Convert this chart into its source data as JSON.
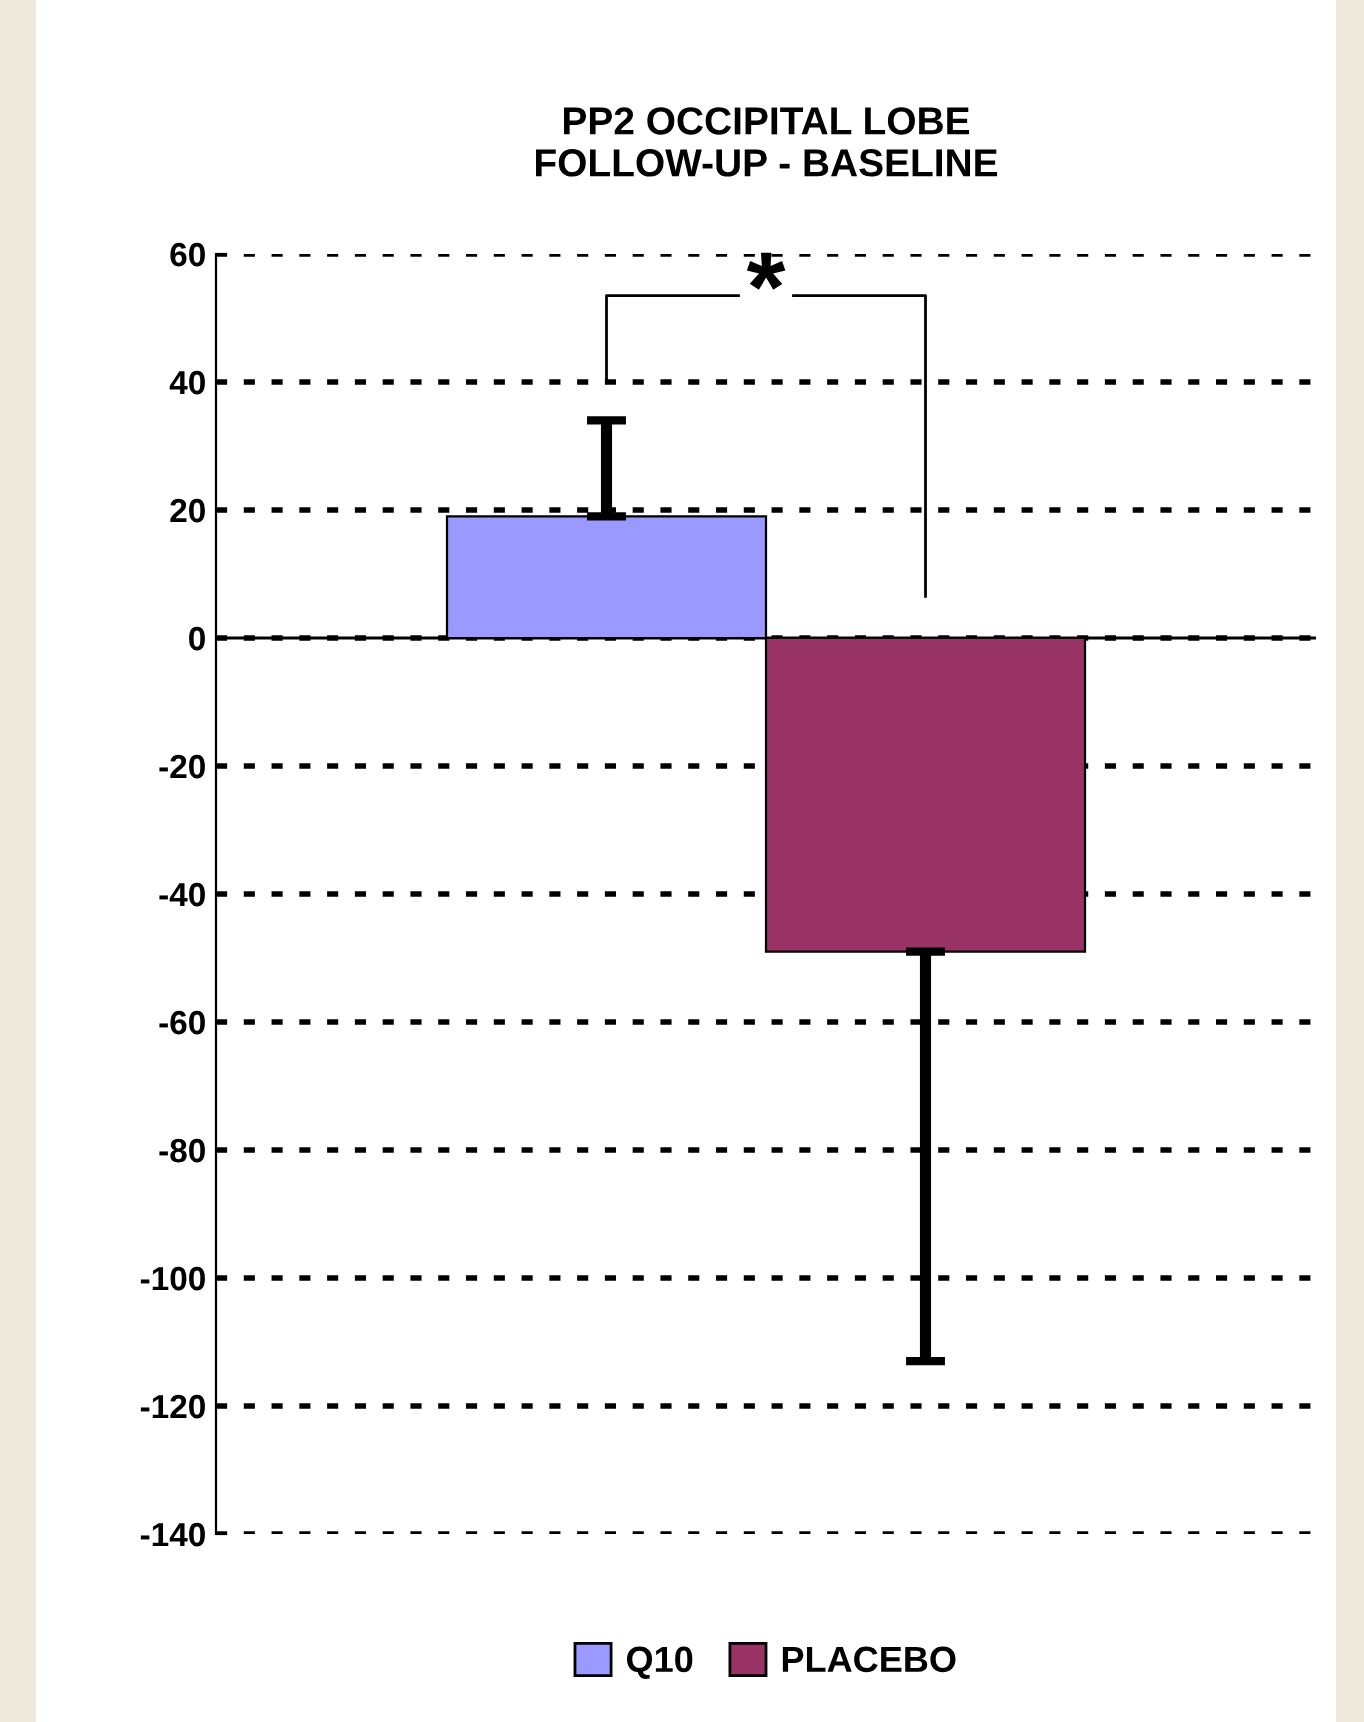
{
  "chart_data": {
    "type": "bar",
    "title": "PP2 OCCIPITAL LOBE\nFOLLOW-UP - BASELINE",
    "categories": [
      null
    ],
    "series": [
      {
        "name": "Q10",
        "color": "#9999ff",
        "values": [
          19
        ],
        "errors": [
          [
            19,
            34
          ]
        ]
      },
      {
        "name": "PLACEBO",
        "color": "#993366",
        "values": [
          -49
        ],
        "errors": [
          [
            -113,
            -49
          ]
        ]
      }
    ],
    "ylim": [
      -140,
      60
    ],
    "yticks": [
      -140,
      -120,
      -100,
      -80,
      -60,
      -40,
      -20,
      0,
      20,
      40,
      60
    ],
    "grid": "y",
    "legend": "bottom",
    "tick_labels": "y",
    "annotations": [
      "*"
    ]
  }
}
